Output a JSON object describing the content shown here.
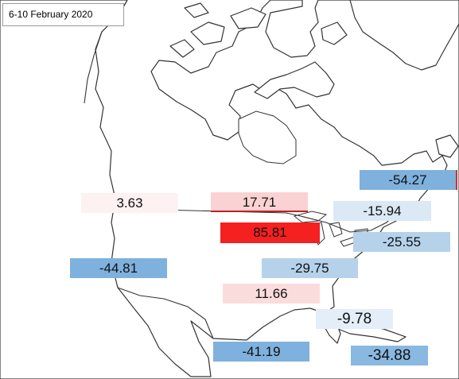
{
  "title": "6-10 February 2020",
  "colors": {
    "strong_positive": "#f52020",
    "weak_positive": "#fbd2d3",
    "faint_positive": "#fdf1f1",
    "strong_negative": "#7eb1dd",
    "medium_negative": "#b5d2ea",
    "weak_negative": "#dbe9f5"
  },
  "values": [
    {
      "label": "3.63",
      "value": 3.63,
      "color": "#fdf1f1"
    },
    {
      "label": "17.71",
      "value": 17.71,
      "color": "#fbd2d3"
    },
    {
      "label": "85.81",
      "value": 85.81,
      "color": "#f52020"
    },
    {
      "label": "-54.27",
      "value": -54.27,
      "color": "#7eb1dd"
    },
    {
      "label": "-15.94",
      "value": -15.94,
      "color": "#dbe9f5"
    },
    {
      "label": "-25.55",
      "value": -25.55,
      "color": "#b5d2ea"
    },
    {
      "label": "-44.81",
      "value": -44.81,
      "color": "#7eb1dd"
    },
    {
      "label": "-29.75",
      "value": -29.75,
      "color": "#b5d2ea"
    },
    {
      "label": "11.66",
      "value": 11.66,
      "color": "#fbdcdd"
    },
    {
      "label": "-9.78",
      "value": -9.78,
      "color": "#e3eef8"
    },
    {
      "label": "-41.19",
      "value": -41.19,
      "color": "#7eb1dd"
    },
    {
      "label": "-34.88",
      "value": -34.88,
      "color": "#89b8e0"
    }
  ]
}
